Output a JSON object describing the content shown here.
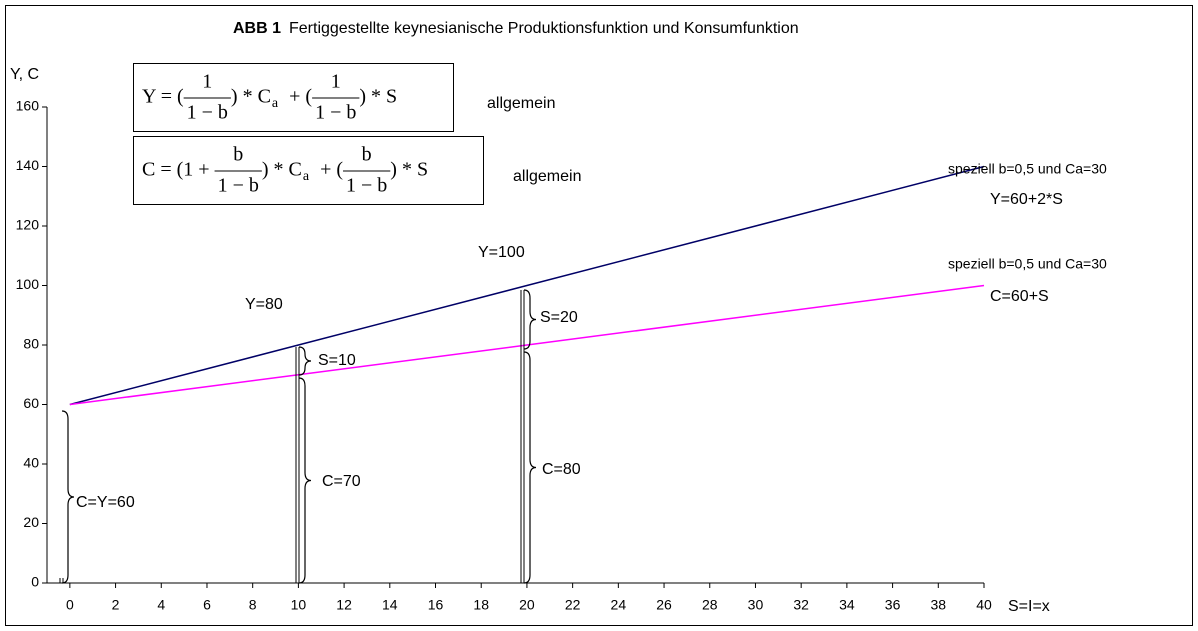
{
  "chart_data": {
    "type": "line",
    "title_label": "ABB 1",
    "title": "Fertiggestellte keynesianische Produktionsfunktion und Konsumfunktion",
    "y_label": "Y,  C",
    "x_label": "S=I=x",
    "xlim": [
      -1,
      40
    ],
    "xticks": [
      0,
      2,
      4,
      6,
      8,
      10,
      12,
      14,
      16,
      18,
      20,
      22,
      24,
      26,
      28,
      30,
      32,
      34,
      36,
      38,
      40
    ],
    "ylim": [
      0,
      160
    ],
    "yticks": [
      0,
      20,
      40,
      60,
      80,
      100,
      120,
      140,
      160
    ],
    "series": [
      {
        "name": "Y=60+2*S",
        "color": "#000066",
        "x": [
          0,
          10,
          20,
          40
        ],
        "values": [
          60,
          80,
          100,
          140
        ]
      },
      {
        "name": "C=60+S",
        "color": "#ff00ff",
        "x": [
          0,
          10,
          20,
          40
        ],
        "values": [
          60,
          70,
          80,
          100
        ]
      }
    ],
    "series_notes": [
      "speziell b=0,5 und  Ca=30",
      "speziell b=0,5 und  Ca=30"
    ],
    "formulas": [
      {
        "tokens": [
          "Y = (",
          {
            "num": "1",
            "den": "1 − b"
          },
          ") * C",
          {
            "sub": "a"
          },
          "  + (",
          {
            "num": "1",
            "den": "1 − b"
          },
          ") * S"
        ],
        "note": "allgemein"
      },
      {
        "tokens": [
          "C = (1 + ",
          {
            "num": "b",
            "den": "1 − b"
          },
          ") * C",
          {
            "sub": "a"
          },
          "  + (",
          {
            "num": "b",
            "den": "1 − b"
          },
          ") * S"
        ],
        "note": "allgemein"
      }
    ],
    "annotations": [
      "C=Y=60",
      "Y=80",
      "S=10",
      "C=70",
      "Y=100",
      "S=20",
      "C=80"
    ]
  }
}
